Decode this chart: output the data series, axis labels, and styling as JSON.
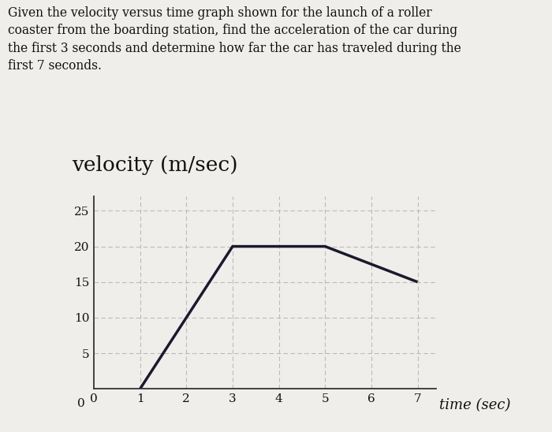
{
  "problem_text": "Given the velocity versus time graph shown for the launch of a roller\ncoaster from the boarding station, find the acceleration of the car during\nthe first 3 seconds and determine how far the car has traveled during the\nfirst 7 seconds.",
  "ylabel_title": "velocity (m/sec)",
  "xlabel": "time (sec)",
  "x_data": [
    1,
    1,
    3,
    5,
    7
  ],
  "y_data": [
    0,
    0,
    20,
    20,
    15
  ],
  "xlim": [
    0,
    7.4
  ],
  "ylim": [
    0,
    27
  ],
  "xticks": [
    0,
    1,
    2,
    3,
    4,
    5,
    6,
    7
  ],
  "yticks": [
    5,
    10,
    15,
    20,
    25
  ],
  "grid_color": "#bbbbbb",
  "line_color": "#1a1a2e",
  "line_width": 2.5,
  "bg_color": "#f0eeea",
  "text_color": "#111111",
  "ylabel_title_fontsize": 19,
  "xlabel_fontsize": 13,
  "problem_fontsize": 11.2,
  "tick_fontsize": 11
}
